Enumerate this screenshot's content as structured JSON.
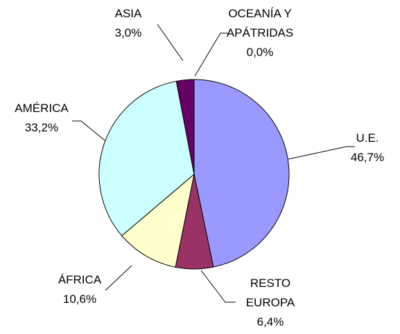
{
  "chart_data": {
    "type": "pie",
    "categories": [
      "U.E.",
      "RESTO EUROPA",
      "ÁFRICA",
      "AMÉRICA",
      "ASIA",
      "OCEANÍA Y APÁTRIDAS"
    ],
    "values": [
      46.7,
      6.4,
      10.6,
      33.2,
      3.0,
      0.0
    ],
    "value_labels": [
      "46,7%",
      "6,4%",
      "10,6%",
      "33,2%",
      "3,0%",
      "0,0%"
    ],
    "colors": [
      "#9999ff",
      "#993366",
      "#ffffcc",
      "#ccffff",
      "#660066",
      "#ffffff"
    ]
  }
}
